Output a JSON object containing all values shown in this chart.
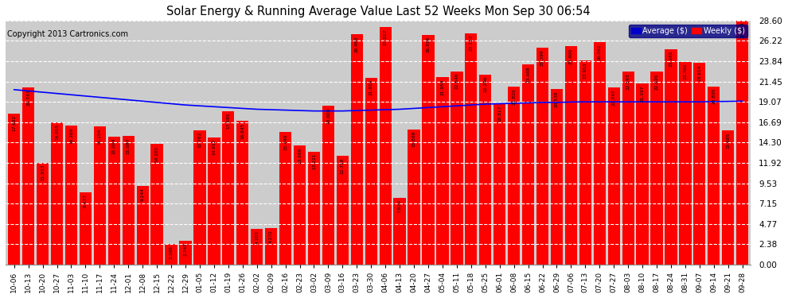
{
  "title": "Solar Energy & Running Average Value Last 52 Weeks Mon Sep 30 06:54",
  "copyright": "Copyright 2013 Cartronics.com",
  "bar_color": "#ff0000",
  "avg_line_color": "#0000ff",
  "background_color": "#ffffff",
  "plot_bg_color": "#cccccc",
  "grid_color": "#ffffff",
  "ylim": [
    0.0,
    28.6
  ],
  "yticks": [
    0.0,
    2.38,
    4.77,
    7.15,
    9.53,
    11.92,
    14.3,
    16.69,
    19.07,
    21.45,
    23.84,
    26.22,
    28.6
  ],
  "categories": [
    "10-06",
    "10-13",
    "10-20",
    "10-27",
    "11-03",
    "11-10",
    "11-17",
    "11-24",
    "12-01",
    "12-08",
    "12-15",
    "12-22",
    "12-29",
    "01-05",
    "01-12",
    "01-19",
    "01-26",
    "02-02",
    "02-09",
    "02-16",
    "02-23",
    "03-02",
    "03-09",
    "03-16",
    "03-23",
    "03-30",
    "04-06",
    "04-13",
    "04-20",
    "04-27",
    "05-04",
    "05-11",
    "05-18",
    "05-25",
    "06-01",
    "06-08",
    "06-15",
    "06-22",
    "06-29",
    "07-06",
    "07-13",
    "07-20",
    "07-27",
    "08-03",
    "08-10",
    "08-17",
    "08-24",
    "08-31",
    "09-07",
    "09-14",
    "09-21",
    "09-28"
  ],
  "values": [
    17.692,
    20.743,
    11.933,
    16.655,
    16.269,
    8.477,
    16.154,
    15.004,
    15.087,
    9.244,
    14.105,
    2.398,
    2.745,
    15.762,
    14.912,
    17.995,
    16.845,
    4.203,
    4.231,
    15.499,
    13.96,
    13.221,
    18.6,
    12.718,
    26.98,
    21.919,
    27.817,
    7.829,
    15.868,
    26.916,
    21.959,
    22.646,
    27.127,
    22.296,
    18.817,
    20.82,
    23.488,
    25.399,
    20.538,
    25.6,
    23.953,
    26.042,
    20.747,
    22.593,
    21.197,
    22.626,
    25.265,
    23.76,
    23.614,
    20.895,
    15.685,
    28.604
  ],
  "avg_values": [
    20.5,
    20.35,
    20.2,
    20.05,
    19.9,
    19.75,
    19.6,
    19.45,
    19.3,
    19.15,
    19.0,
    18.85,
    18.7,
    18.6,
    18.5,
    18.4,
    18.3,
    18.2,
    18.15,
    18.1,
    18.05,
    18.0,
    18.0,
    18.0,
    18.05,
    18.1,
    18.15,
    18.2,
    18.3,
    18.4,
    18.5,
    18.6,
    18.7,
    18.8,
    18.85,
    18.9,
    18.95,
    19.0,
    19.0,
    19.05,
    19.07,
    19.07,
    19.07,
    19.07,
    19.07,
    19.07,
    19.07,
    19.07,
    19.07,
    19.1,
    19.12,
    19.15
  ],
  "legend_avg_color": "#0000cc",
  "legend_weekly_color": "#ff0000",
  "legend_bg_color": "#000080"
}
